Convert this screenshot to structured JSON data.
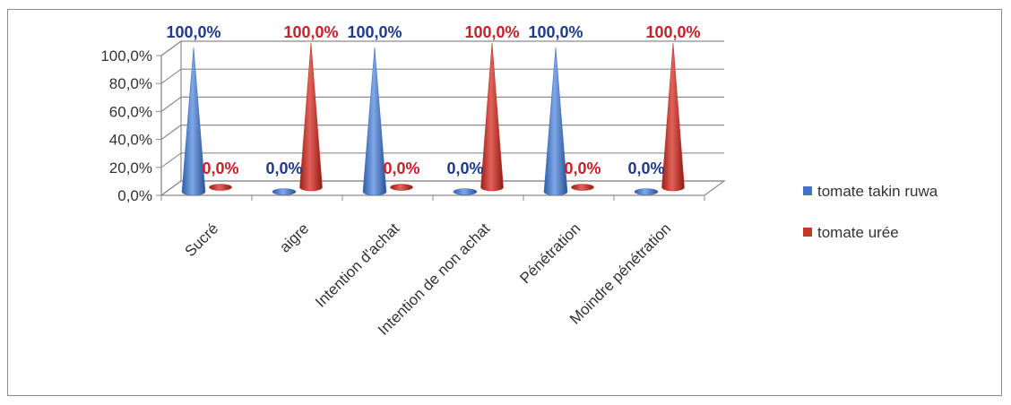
{
  "chart_data": {
    "type": "bar",
    "style": "3d-cone",
    "categories": [
      "Sucré",
      "aigre",
      "Intention d'achat",
      "Intention de non achat",
      "Pénétration",
      "Moindre pénétration"
    ],
    "series": [
      {
        "name": "tomate takin ruwa",
        "values": [
          100,
          0,
          100,
          0,
          100,
          0
        ],
        "color": "#4472C4",
        "label_color": "#1F3A8C"
      },
      {
        "name": "tomate urée",
        "values": [
          0,
          100,
          0,
          100,
          0,
          100
        ],
        "color": "#C0392B",
        "label_color": "#C8202A"
      }
    ],
    "data_labels": [
      [
        "100,0%",
        "0,0%",
        "100,0%",
        "0,0%",
        "100,0%",
        "0,0%"
      ],
      [
        "0,0%",
        "100,0%",
        "0,0%",
        "100,0%",
        "0,0%",
        "100,0%"
      ]
    ],
    "y_ticks": [
      "0,0%",
      "20,0%",
      "40,0%",
      "60,0%",
      "80,0%",
      "100,0%"
    ],
    "ylim": [
      0,
      100
    ],
    "grid": true,
    "legend_position": "right",
    "title": "",
    "xlabel": "",
    "ylabel": ""
  }
}
